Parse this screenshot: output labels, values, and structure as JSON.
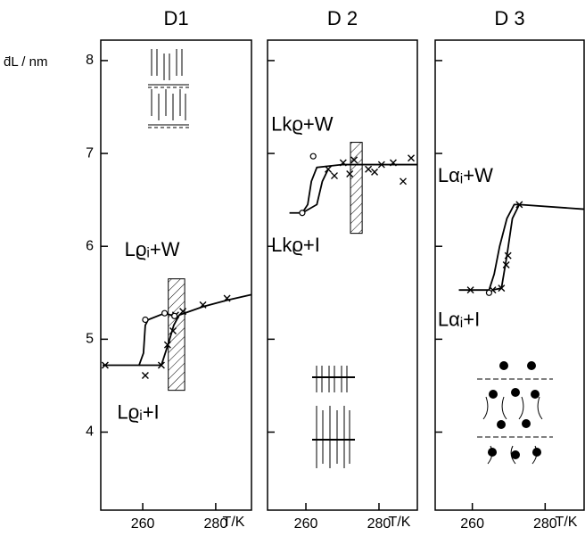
{
  "chart_data": [
    {
      "type": "scatter",
      "title": "D1",
      "xlabel": "T/K",
      "ylabel": "d̄L / nm",
      "xlim": [
        248.5,
        289.8
      ],
      "xticks": [
        260,
        280
      ],
      "ylim": [
        3.16,
        8.22
      ],
      "yticks": [
        4,
        5,
        6,
        7,
        8
      ],
      "ytick_labels": true,
      "series": [
        {
          "marker": "x",
          "x": [
            249.7,
            260.7,
            265.1,
            266.8,
            268.3,
            269,
            271,
            276.5,
            283.1
          ],
          "values": [
            4.72,
            4.61,
            4.72,
            4.94,
            5.09,
            5.26,
            5.3,
            5.37,
            5.44
          ]
        },
        {
          "marker": "o",
          "x": [
            260.7,
            266,
            268.7
          ],
          "values": [
            5.21,
            5.28,
            5.25
          ]
        }
      ],
      "lines": [
        {
          "x": [
            249,
            259,
            260.2,
            260.7,
            261.5,
            266,
            268.7
          ],
          "values": [
            4.72,
            4.72,
            4.85,
            5.15,
            5.21,
            5.28,
            5.25
          ]
        },
        {
          "x": [
            259,
            265.1,
            267,
            268.5,
            270,
            276.5,
            283.1,
            289.8
          ],
          "values": [
            4.72,
            4.72,
            4.95,
            5.15,
            5.26,
            5.35,
            5.42,
            5.48
          ]
        }
      ],
      "band": {
        "x": [
          267,
          271.5
        ],
        "values": [
          4.45,
          5.65
        ]
      },
      "annotations": [
        {
          "text": "Lϱᵢ+W",
          "x": 255,
          "y": 5.95
        },
        {
          "text": "Lϱᵢ+I",
          "x": 253,
          "y": 4.2
        }
      ]
    },
    {
      "type": "scatter",
      "title": "D 2",
      "xlabel": "T/K",
      "xlim": [
        249.5,
        290.5
      ],
      "xticks": [
        260,
        280
      ],
      "ylim": [
        3.16,
        8.22
      ],
      "yticks": [
        4,
        5,
        6,
        7,
        8
      ],
      "ytick_labels": false,
      "series": [
        {
          "marker": "x",
          "x": [
            266.1,
            267.8,
            270.2,
            272,
            273.2,
            277.1,
            278.8,
            280.7,
            283.9,
            286.6,
            288.8
          ],
          "values": [
            6.83,
            6.76,
            6.9,
            6.78,
            6.93,
            6.83,
            6.8,
            6.88,
            6.9,
            6.7,
            6.95
          ]
        },
        {
          "marker": "o",
          "x": [
            259,
            262
          ],
          "values": [
            6.36,
            6.97
          ]
        }
      ],
      "lines": [
        {
          "x": [
            255.5,
            259,
            260.5,
            261.5,
            263,
            270,
            290.5
          ],
          "values": [
            6.36,
            6.36,
            6.45,
            6.7,
            6.85,
            6.88,
            6.88
          ]
        },
        {
          "x": [
            259,
            263,
            264.5,
            266.1
          ],
          "values": [
            6.36,
            6.45,
            6.7,
            6.83
          ]
        }
      ],
      "band": {
        "x": [
          272.2,
          275.4
        ],
        "values": [
          6.14,
          7.12
        ]
      },
      "annotations": [
        {
          "text": "Lkϱ+W",
          "x": 250.5,
          "y": 7.3
        },
        {
          "text": "Lkϱ+I",
          "x": 250.5,
          "y": 6.0
        }
      ]
    },
    {
      "type": "scatter",
      "title": "D 3",
      "xlabel": "T/K",
      "xlim": [
        249.8,
        290.7
      ],
      "xticks": [
        260,
        280
      ],
      "ylim": [
        3.16,
        8.22
      ],
      "yticks": [
        4,
        5,
        6,
        7,
        8
      ],
      "ytick_labels": false,
      "series": [
        {
          "marker": "x",
          "x": [
            259.5,
            265.6,
            268,
            269.3,
            269.8,
            272.9
          ],
          "values": [
            5.53,
            5.53,
            5.55,
            5.8,
            5.9,
            6.45
          ]
        },
        {
          "marker": "o",
          "x": [
            264.6
          ],
          "values": [
            5.5
          ]
        }
      ],
      "lines": [
        {
          "x": [
            256.3,
            264.6,
            266,
            267.5,
            269.5,
            271.5,
            272.9,
            290.7
          ],
          "values": [
            5.53,
            5.53,
            5.7,
            6.0,
            6.3,
            6.45,
            6.45,
            6.4
          ]
        },
        {
          "x": [
            265.6,
            268,
            269.5,
            271,
            272.9
          ],
          "values": [
            5.53,
            5.55,
            5.9,
            6.3,
            6.45
          ]
        }
      ],
      "annotations": [
        {
          "text": "Lαᵢ+W",
          "x": 250.5,
          "y": 6.75
        },
        {
          "text": "Lαᵢ+I",
          "x": 250.5,
          "y": 5.2
        }
      ]
    }
  ]
}
